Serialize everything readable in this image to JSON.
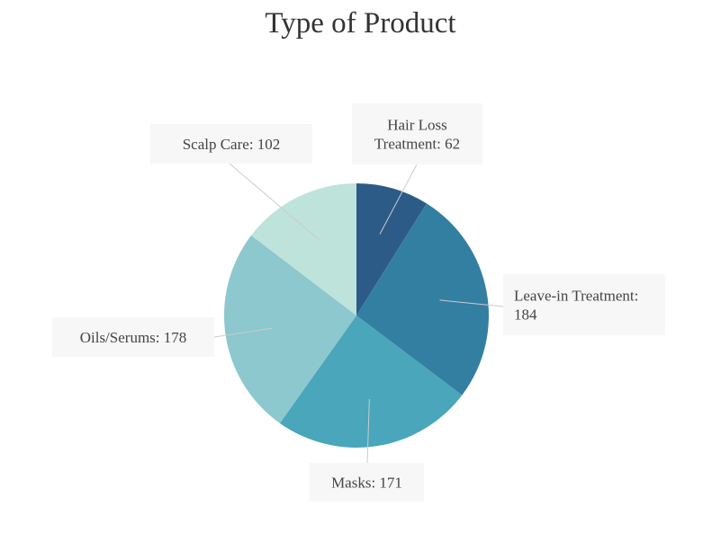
{
  "chart_data": {
    "type": "pie",
    "title": "Type of Product",
    "slices": [
      {
        "label": "Hair Loss Treatment",
        "value": 62,
        "color": "#2d5b88"
      },
      {
        "label": "Leave-in Treatment",
        "value": 184,
        "color": "#337fa2"
      },
      {
        "label": "Masks",
        "value": 171,
        "color": "#49a6bb"
      },
      {
        "label": "Oils/Serums",
        "value": 178,
        "color": "#8cc8cd"
      },
      {
        "label": "Scalp Care",
        "value": 102,
        "color": "#bde3da"
      }
    ],
    "data_labels": [
      {
        "lines": [
          "Hair Loss",
          "Treatment: 62"
        ]
      },
      {
        "lines": [
          "Leave-in Treatment:",
          "184"
        ]
      },
      {
        "lines": [
          "Masks: 171"
        ]
      },
      {
        "lines": [
          "Oils/Serums: 178"
        ]
      },
      {
        "lines": [
          "Scalp Care: 102"
        ]
      }
    ],
    "legend": "none"
  }
}
